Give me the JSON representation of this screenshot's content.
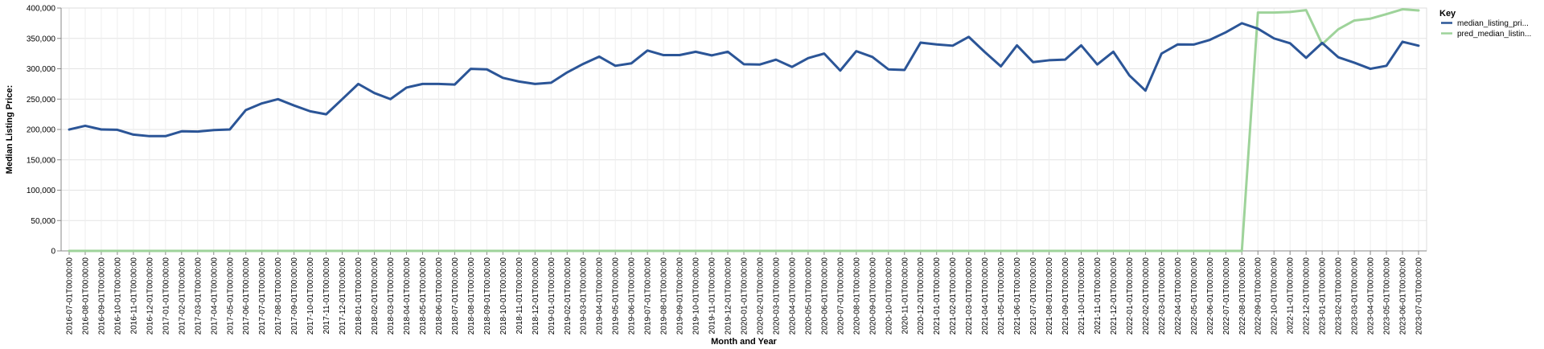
{
  "chart_data": {
    "type": "line",
    "xlabel": "Month and Year",
    "ylabel": "Median Listing Price:",
    "ylim": [
      0,
      400000
    ],
    "yticks": [
      "0",
      "50,000",
      "100,000",
      "150,000",
      "200,000",
      "250,000",
      "300,000",
      "350,000",
      "400,000"
    ],
    "ytick_values": [
      0,
      50000,
      100000,
      150000,
      200000,
      250000,
      300000,
      350000,
      400000
    ],
    "grid": true,
    "legend": {
      "title": "Key",
      "position": "top-right"
    },
    "x": [
      "2016-07-01T00:00:00",
      "2016-08-01T00:00:00",
      "2016-09-01T00:00:00",
      "2016-10-01T00:00:00",
      "2016-11-01T00:00:00",
      "2016-12-01T00:00:00",
      "2017-01-01T00:00:00",
      "2017-02-01T00:00:00",
      "2017-03-01T00:00:00",
      "2017-04-01T00:00:00",
      "2017-05-01T00:00:00",
      "2017-06-01T00:00:00",
      "2017-07-01T00:00:00",
      "2017-08-01T00:00:00",
      "2017-09-01T00:00:00",
      "2017-10-01T00:00:00",
      "2017-11-01T00:00:00",
      "2017-12-01T00:00:00",
      "2018-01-01T00:00:00",
      "2018-02-01T00:00:00",
      "2018-03-01T00:00:00",
      "2018-04-01T00:00:00",
      "2018-05-01T00:00:00",
      "2018-06-01T00:00:00",
      "2018-07-01T00:00:00",
      "2018-08-01T00:00:00",
      "2018-09-01T00:00:00",
      "2018-10-01T00:00:00",
      "2018-11-01T00:00:00",
      "2018-12-01T00:00:00",
      "2019-01-01T00:00:00",
      "2019-02-01T00:00:00",
      "2019-03-01T00:00:00",
      "2019-04-01T00:00:00",
      "2019-05-01T00:00:00",
      "2019-06-01T00:00:00",
      "2019-07-01T00:00:00",
      "2019-08-01T00:00:00",
      "2019-09-01T00:00:00",
      "2019-10-01T00:00:00",
      "2019-11-01T00:00:00",
      "2019-12-01T00:00:00",
      "2020-01-01T00:00:00",
      "2020-02-01T00:00:00",
      "2020-03-01T00:00:00",
      "2020-04-01T00:00:00",
      "2020-05-01T00:00:00",
      "2020-06-01T00:00:00",
      "2020-07-01T00:00:00",
      "2020-08-01T00:00:00",
      "2020-09-01T00:00:00",
      "2020-10-01T00:00:00",
      "2020-11-01T00:00:00",
      "2020-12-01T00:00:00",
      "2021-01-01T00:00:00",
      "2021-02-01T00:00:00",
      "2021-03-01T00:00:00",
      "2021-04-01T00:00:00",
      "2021-05-01T00:00:00",
      "2021-06-01T00:00:00",
      "2021-07-01T00:00:00",
      "2021-08-01T00:00:00",
      "2021-09-01T00:00:00",
      "2021-10-01T00:00:00",
      "2021-11-01T00:00:00",
      "2021-12-01T00:00:00",
      "2022-01-01T00:00:00",
      "2022-02-01T00:00:00",
      "2022-03-01T00:00:00",
      "2022-04-01T00:00:00",
      "2022-05-01T00:00:00",
      "2022-06-01T00:00:00",
      "2022-07-01T00:00:00",
      "2022-08-01T00:00:00",
      "2022-09-01T00:00:00",
      "2022-10-01T00:00:00",
      "2022-11-01T00:00:00",
      "2022-12-01T00:00:00",
      "2023-01-01T00:00:00",
      "2023-02-01T00:00:00",
      "2023-03-01T00:00:00",
      "2023-04-01T00:00:00",
      "2023-05-01T00:00:00",
      "2023-06-01T00:00:00",
      "2023-07-01T00:00:00"
    ],
    "series": [
      {
        "name": "median_listing_pri...",
        "color": "#2b5597",
        "values": [
          199900,
          206000,
          200000,
          199500,
          191500,
          189000,
          189000,
          197000,
          196500,
          199000,
          200000,
          232000,
          243000,
          249900,
          239500,
          230000,
          225000,
          249900,
          275000,
          260000,
          250000,
          269000,
          275000,
          275000,
          274000,
          299900,
          299000,
          285000,
          279000,
          275000,
          277000,
          294000,
          308000,
          320000,
          304900,
          309000,
          330000,
          322500,
          322500,
          328000,
          322000,
          328000,
          307500,
          307000,
          315000,
          303000,
          317500,
          325000,
          297000,
          329000,
          319500,
          299000,
          298000,
          343000,
          340000,
          338000,
          352500,
          327500,
          304000,
          338500,
          311000,
          314000,
          315000,
          338500,
          307000,
          328000,
          289000,
          264000,
          325000,
          340000,
          339900,
          347500,
          360000,
          375000,
          366000,
          350000,
          342000,
          318000,
          342500,
          319000,
          310000,
          299900,
          304900,
          344500,
          338000
        ]
      },
      {
        "name": "pred_median_listin...",
        "color": "#9ed39a",
        "values": [
          0,
          0,
          0,
          0,
          0,
          0,
          0,
          0,
          0,
          0,
          0,
          0,
          0,
          0,
          0,
          0,
          0,
          0,
          0,
          0,
          0,
          0,
          0,
          0,
          0,
          0,
          0,
          0,
          0,
          0,
          0,
          0,
          0,
          0,
          0,
          0,
          0,
          0,
          0,
          0,
          0,
          0,
          0,
          0,
          0,
          0,
          0,
          0,
          0,
          0,
          0,
          0,
          0,
          0,
          0,
          0,
          0,
          0,
          0,
          0,
          0,
          0,
          0,
          0,
          0,
          0,
          0,
          0,
          0,
          0,
          0,
          0,
          0,
          0,
          392500,
          392500,
          393500,
          396500,
          340500,
          365000,
          379500,
          382500,
          390000,
          398000,
          396000
        ]
      }
    ]
  }
}
